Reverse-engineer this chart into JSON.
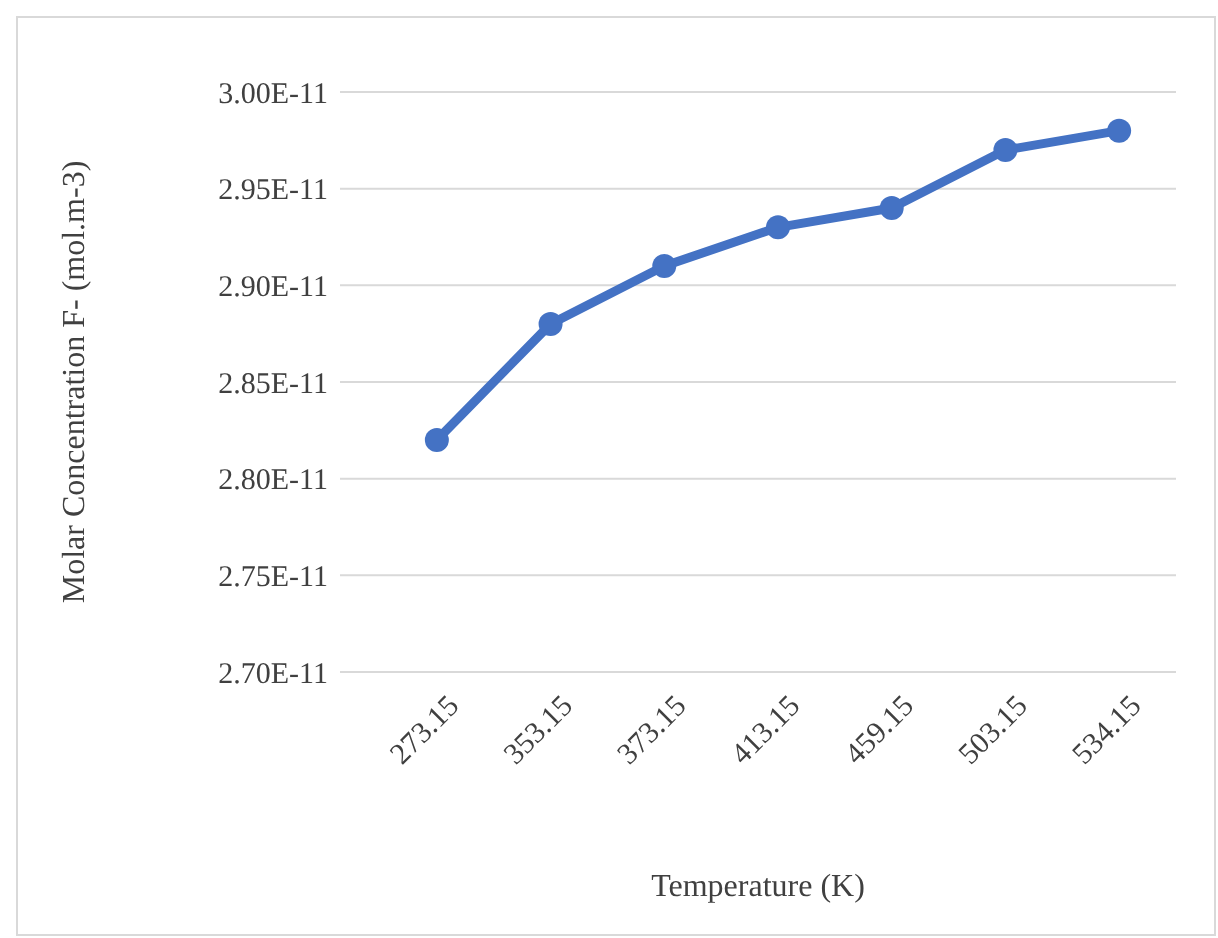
{
  "chart_data": {
    "type": "line",
    "xlabel": "Temperature (K)",
    "ylabel": "Molar Concentration F- (mol.m-3)",
    "categories": [
      "273.15",
      "353.15",
      "373.15",
      "413.15",
      "459.15",
      "503.15",
      "534.15"
    ],
    "series": [
      {
        "color": "#4472c4",
        "values": [
          2.82e-11,
          2.88e-11,
          2.91e-11,
          2.93e-11,
          2.94e-11,
          2.97e-11,
          2.98e-11
        ]
      }
    ],
    "ylim": [
      2.7e-11,
      3e-11
    ],
    "yticks": [
      {
        "value": 2.7e-11,
        "label": "2.70E-11"
      },
      {
        "value": 2.75e-11,
        "label": "2.75E-11"
      },
      {
        "value": 2.8e-11,
        "label": "2.80E-11"
      },
      {
        "value": 2.85e-11,
        "label": "2.85E-11"
      },
      {
        "value": 2.9e-11,
        "label": "2.90E-11"
      },
      {
        "value": 2.95e-11,
        "label": "2.95E-11"
      },
      {
        "value": 3e-11,
        "label": "3.00E-11"
      }
    ],
    "grid": "y",
    "marker": "circle",
    "line_style": "solid"
  }
}
